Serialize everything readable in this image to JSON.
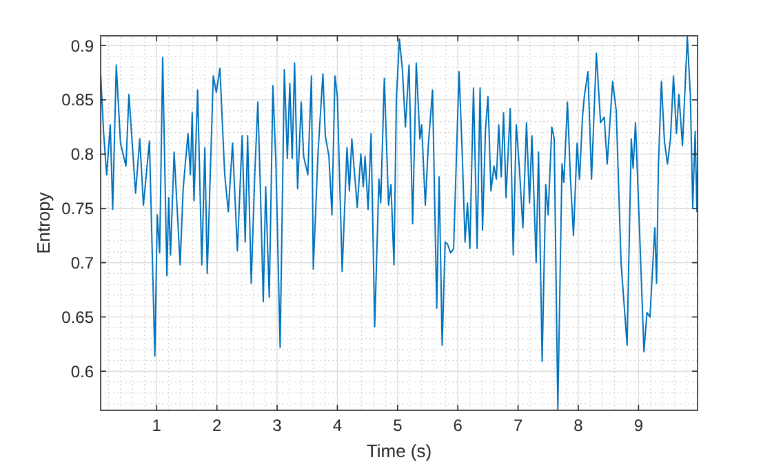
{
  "chart_data": {
    "type": "line",
    "xlabel": "Time (s)",
    "ylabel": "Entropy",
    "xlim": [
      0.07,
      9.98
    ],
    "ylim": [
      0.564,
      0.909
    ],
    "xticks": [
      1,
      2,
      3,
      4,
      5,
      6,
      7,
      8,
      9
    ],
    "yticks": [
      0.6,
      0.65,
      0.7,
      0.75,
      0.8,
      0.85,
      0.9
    ],
    "grid": true,
    "marker": "none",
    "line_style": "solid",
    "series": [
      {
        "color": "#0072bd",
        "x": [
          0.07,
          0.12,
          0.17,
          0.23,
          0.27,
          0.33,
          0.4,
          0.49,
          0.54,
          0.65,
          0.72,
          0.78,
          0.88,
          0.97,
          1.01,
          1.05,
          1.1,
          1.17,
          1.2,
          1.23,
          1.29,
          1.39,
          1.44,
          1.52,
          1.56,
          1.59,
          1.62,
          1.68,
          1.75,
          1.8,
          1.84,
          1.94,
          1.99,
          2.05,
          2.13,
          2.19,
          2.26,
          2.34,
          2.42,
          2.47,
          2.51,
          2.57,
          2.63,
          2.68,
          2.72,
          2.77,
          2.81,
          2.87,
          2.93,
          2.98,
          3.05,
          3.12,
          3.17,
          3.21,
          3.25,
          3.29,
          3.34,
          3.4,
          3.44,
          3.51,
          3.57,
          3.6,
          3.68,
          3.76,
          3.8,
          3.86,
          3.91,
          3.96,
          4.0,
          4.08,
          4.16,
          4.2,
          4.24,
          4.33,
          4.39,
          4.43,
          4.46,
          4.51,
          4.56,
          4.62,
          4.69,
          4.72,
          4.78,
          4.85,
          4.89,
          4.94,
          4.98,
          5.03,
          5.08,
          5.13,
          5.19,
          5.25,
          5.31,
          5.37,
          5.4,
          5.46,
          5.51,
          5.58,
          5.65,
          5.69,
          5.74,
          5.79,
          5.83,
          5.88,
          5.93,
          6.02,
          6.07,
          6.12,
          6.16,
          6.2,
          6.26,
          6.32,
          6.37,
          6.41,
          6.46,
          6.5,
          6.55,
          6.6,
          6.64,
          6.68,
          6.72,
          6.76,
          6.8,
          6.87,
          6.92,
          6.97,
          7.02,
          7.08,
          7.14,
          7.19,
          7.23,
          7.3,
          7.34,
          7.4,
          7.46,
          7.5,
          7.56,
          7.6,
          7.66,
          7.73,
          7.76,
          7.82,
          7.87,
          7.92,
          7.98,
          8.02,
          8.07,
          8.1,
          8.16,
          8.22,
          8.3,
          8.37,
          8.43,
          8.48,
          8.57,
          8.63,
          8.71,
          8.81,
          8.88,
          8.91,
          8.95,
          9.02,
          9.09,
          9.14,
          9.19,
          9.27,
          9.3,
          9.33,
          9.38,
          9.43,
          9.48,
          9.53,
          9.58,
          9.63,
          9.67,
          9.73,
          9.81,
          9.86,
          9.9,
          9.94,
          9.97,
          9.98
        ],
        "values": [
          0.874,
          0.819,
          0.781,
          0.827,
          0.749,
          0.882,
          0.81,
          0.789,
          0.855,
          0.764,
          0.814,
          0.753,
          0.812,
          0.614,
          0.744,
          0.709,
          0.889,
          0.688,
          0.76,
          0.707,
          0.802,
          0.698,
          0.768,
          0.819,
          0.781,
          0.838,
          0.757,
          0.859,
          0.698,
          0.806,
          0.69,
          0.872,
          0.857,
          0.879,
          0.781,
          0.747,
          0.81,
          0.711,
          0.817,
          0.719,
          0.817,
          0.681,
          0.783,
          0.848,
          0.772,
          0.664,
          0.77,
          0.668,
          0.863,
          0.791,
          0.622,
          0.878,
          0.796,
          0.865,
          0.796,
          0.884,
          0.768,
          0.848,
          0.798,
          0.781,
          0.872,
          0.694,
          0.802,
          0.874,
          0.817,
          0.798,
          0.744,
          0.872,
          0.853,
          0.692,
          0.806,
          0.766,
          0.814,
          0.751,
          0.8,
          0.77,
          0.798,
          0.749,
          0.819,
          0.641,
          0.777,
          0.755,
          0.87,
          0.753,
          0.772,
          0.698,
          0.851,
          0.906,
          0.878,
          0.825,
          0.882,
          0.736,
          0.884,
          0.814,
          0.827,
          0.753,
          0.808,
          0.859,
          0.658,
          0.779,
          0.624,
          0.719,
          0.717,
          0.709,
          0.713,
          0.876,
          0.806,
          0.719,
          0.755,
          0.713,
          0.861,
          0.713,
          0.861,
          0.73,
          0.823,
          0.853,
          0.766,
          0.789,
          0.777,
          0.827,
          0.779,
          0.838,
          0.76,
          0.842,
          0.707,
          0.827,
          0.789,
          0.732,
          0.829,
          0.755,
          0.817,
          0.7,
          0.802,
          0.609,
          0.772,
          0.744,
          0.825,
          0.814,
          0.565,
          0.791,
          0.774,
          0.848,
          0.777,
          0.725,
          0.81,
          0.777,
          0.834,
          0.853,
          0.876,
          0.777,
          0.893,
          0.829,
          0.834,
          0.791,
          0.867,
          0.84,
          0.7,
          0.624,
          0.814,
          0.787,
          0.829,
          0.725,
          0.618,
          0.654,
          0.65,
          0.732,
          0.681,
          0.789,
          0.867,
          0.812,
          0.791,
          0.814,
          0.872,
          0.819,
          0.855,
          0.808,
          0.908,
          0.855,
          0.751,
          0.821,
          0.747,
          0.785
        ]
      }
    ]
  }
}
